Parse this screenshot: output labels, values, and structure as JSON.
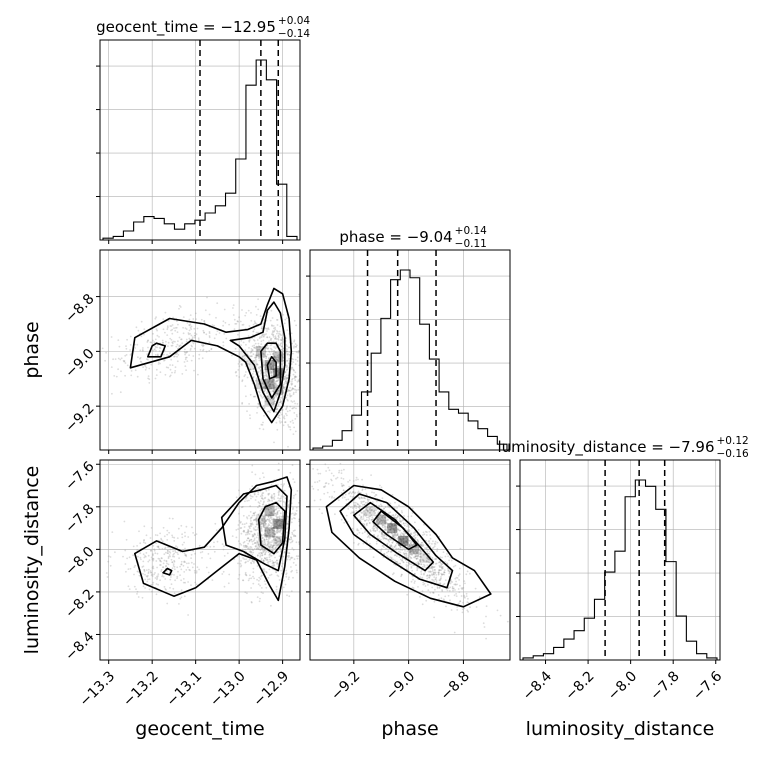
{
  "chart_data": {
    "type": "corner",
    "parameters": [
      {
        "name": "geocent_time",
        "label": "geocent_time",
        "title_main": "geocent_time = −12.95",
        "title_plus": "+0.04",
        "title_minus": "−0.14",
        "median": -12.95,
        "q16": -13.09,
        "q84": -12.91,
        "range": [
          -13.32,
          -12.86
        ],
        "ticks": [
          -13.3,
          -13.2,
          -13.1,
          -13.0,
          -12.9
        ],
        "tick_labels": [
          "−13.3",
          "−13.2",
          "−13.1",
          "−13.0",
          "−12.9"
        ],
        "hist_bins": [
          1,
          2,
          5,
          10,
          13,
          12,
          9,
          6,
          9,
          11,
          15,
          19,
          26,
          45,
          86,
          100,
          89,
          31,
          2
        ]
      },
      {
        "name": "phase",
        "label": "phase",
        "title_main": "phase = −9.04",
        "title_plus": "+0.14",
        "title_minus": "−0.11",
        "median": -9.04,
        "q16": -9.15,
        "q84": -8.9,
        "range": [
          -9.36,
          -8.63
        ],
        "ticks": [
          -9.2,
          -9.0,
          -8.8
        ],
        "tick_labels": [
          "−9.2",
          "−9.0",
          "−8.8"
        ],
        "hist_bins": [
          1,
          2,
          5,
          10,
          18,
          30,
          50,
          68,
          88,
          93,
          89,
          65,
          47,
          30,
          21,
          19,
          15,
          11,
          7,
          3
        ]
      },
      {
        "name": "luminosity_distance",
        "label": "luminosity_distance",
        "title_main": "luminosity_distance = −7.96",
        "title_plus": "+0.12",
        "title_minus": "−0.16",
        "median": -7.96,
        "q16": -8.12,
        "q84": -7.84,
        "range": [
          -8.52,
          -7.58
        ],
        "ticks": [
          -8.4,
          -8.2,
          -8.0,
          -7.8,
          -7.6
        ],
        "tick_labels": [
          "−8.4",
          "−8.2",
          "−8.0",
          "−7.8",
          "−7.6"
        ],
        "hist_bins": [
          1,
          2,
          3,
          6,
          10,
          14,
          20,
          29,
          42,
          52,
          78,
          86,
          83,
          72,
          47,
          21,
          9,
          3,
          1
        ]
      }
    ],
    "pairs": [
      {
        "x": 0,
        "y": 1,
        "samples_main": {
          "mean": [
            -12.92,
            -9.07
          ],
          "sd": [
            0.035,
            0.1
          ],
          "corr": -0.3,
          "weight": 0.75
        },
        "samples_tail": {
          "mean": [
            -13.15,
            -8.97
          ],
          "sd": [
            0.07,
            0.06
          ],
          "corr": 0.5,
          "weight": 0.25
        }
      },
      {
        "x": 0,
        "y": 2,
        "samples_main": {
          "mean": [
            -12.93,
            -7.92
          ],
          "sd": [
            0.035,
            0.12
          ],
          "corr": 0.1,
          "weight": 0.75
        },
        "samples_tail": {
          "mean": [
            -13.17,
            -8.06
          ],
          "sd": [
            0.06,
            0.08
          ],
          "corr": 0.0,
          "weight": 0.25
        }
      },
      {
        "x": 1,
        "y": 2,
        "samples_main": {
          "mean": [
            -9.03,
            -7.96
          ],
          "sd": [
            0.12,
            0.14
          ],
          "corr": -0.88,
          "weight": 1.0
        },
        "samples_tail": {
          "mean": [
            -9.03,
            -7.96
          ],
          "sd": [
            0.12,
            0.14
          ],
          "corr": -0.88,
          "weight": 0.0
        }
      }
    ],
    "grid": true
  }
}
